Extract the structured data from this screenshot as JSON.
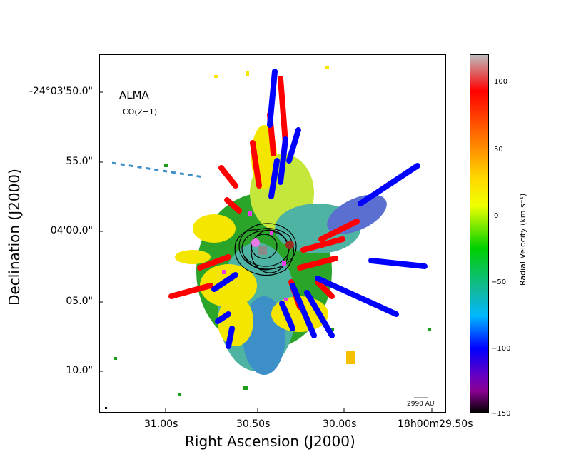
{
  "panel": {
    "title": "ALMA",
    "subtitle": "CO(2−1)",
    "scale_bar_label": "2990 AU"
  },
  "axes": {
    "xlabel": "Right Ascension (J2000)",
    "ylabel": "Declination (J2000)",
    "xticks": [
      "31.00s",
      "30.50s",
      "30.00s",
      "18h00m29.50s"
    ],
    "yticks": [
      "-24°03'50.0\"",
      "55.0\"",
      "04'00.0\"",
      "05.0\"",
      "10.0\""
    ]
  },
  "colorbar": {
    "title": "Radial Velocity (km s⁻¹)",
    "ticks": [
      "100",
      "50",
      "0",
      "−50",
      "−100",
      "−150"
    ],
    "range": [
      -150,
      120
    ]
  },
  "colors": {
    "red": "#ff0000",
    "yellow": "#f5e600",
    "green": "#1a9e1a",
    "blue": "#0000ff",
    "teal": "#4fb3a3",
    "magenta": "#e83ce8",
    "gray": "#8a8a8a",
    "brown": "#9b2f1f",
    "contour": "#000000"
  }
}
